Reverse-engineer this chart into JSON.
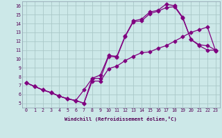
{
  "xlabel": "Windchill (Refroidissement éolien,°C)",
  "bg_color": "#cce8e8",
  "line_color": "#800080",
  "grid_color": "#aac8c8",
  "line1_x": [
    0,
    1,
    2,
    3,
    4,
    5,
    6,
    7,
    8,
    9,
    10,
    11,
    12,
    13,
    14,
    15,
    16,
    17,
    18,
    19,
    20,
    21,
    22,
    23
  ],
  "line1_y": [
    7.3,
    6.9,
    6.5,
    6.2,
    5.8,
    5.5,
    5.3,
    5.0,
    7.8,
    8.2,
    10.4,
    10.3,
    12.6,
    14.3,
    14.5,
    15.3,
    15.5,
    16.2,
    16.0,
    14.7,
    12.2,
    11.6,
    11.5,
    11.0
  ],
  "line2_x": [
    0,
    1,
    2,
    3,
    4,
    5,
    6,
    7,
    8,
    9,
    10,
    11,
    12,
    13,
    14,
    15,
    16,
    17,
    18,
    19,
    20,
    21,
    22,
    23
  ],
  "line2_y": [
    7.3,
    6.9,
    6.5,
    6.2,
    5.8,
    5.5,
    5.3,
    5.0,
    7.5,
    7.5,
    8.9,
    9.2,
    9.8,
    10.3,
    10.7,
    10.8,
    11.2,
    11.5,
    12.0,
    12.5,
    13.0,
    13.3,
    13.6,
    10.9
  ],
  "line3_x": [
    0,
    1,
    2,
    3,
    4,
    5,
    6,
    7,
    8,
    9,
    10,
    11,
    12,
    13,
    14,
    15,
    16,
    17,
    18,
    19,
    20,
    21,
    22,
    23
  ],
  "line3_y": [
    7.3,
    6.9,
    6.5,
    6.2,
    5.8,
    5.5,
    5.3,
    6.5,
    7.8,
    7.8,
    10.3,
    10.2,
    12.5,
    14.2,
    14.3,
    15.1,
    15.4,
    15.8,
    15.9,
    14.6,
    12.2,
    11.5,
    11.0,
    11.0
  ],
  "xlim": [
    -0.5,
    23.5
  ],
  "ylim": [
    4.5,
    16.5
  ],
  "yticks": [
    5,
    6,
    7,
    8,
    9,
    10,
    11,
    12,
    13,
    14,
    15,
    16
  ],
  "xticks": [
    0,
    1,
    2,
    3,
    4,
    5,
    6,
    7,
    8,
    9,
    10,
    11,
    12,
    13,
    14,
    15,
    16,
    17,
    18,
    19,
    20,
    21,
    22,
    23
  ]
}
